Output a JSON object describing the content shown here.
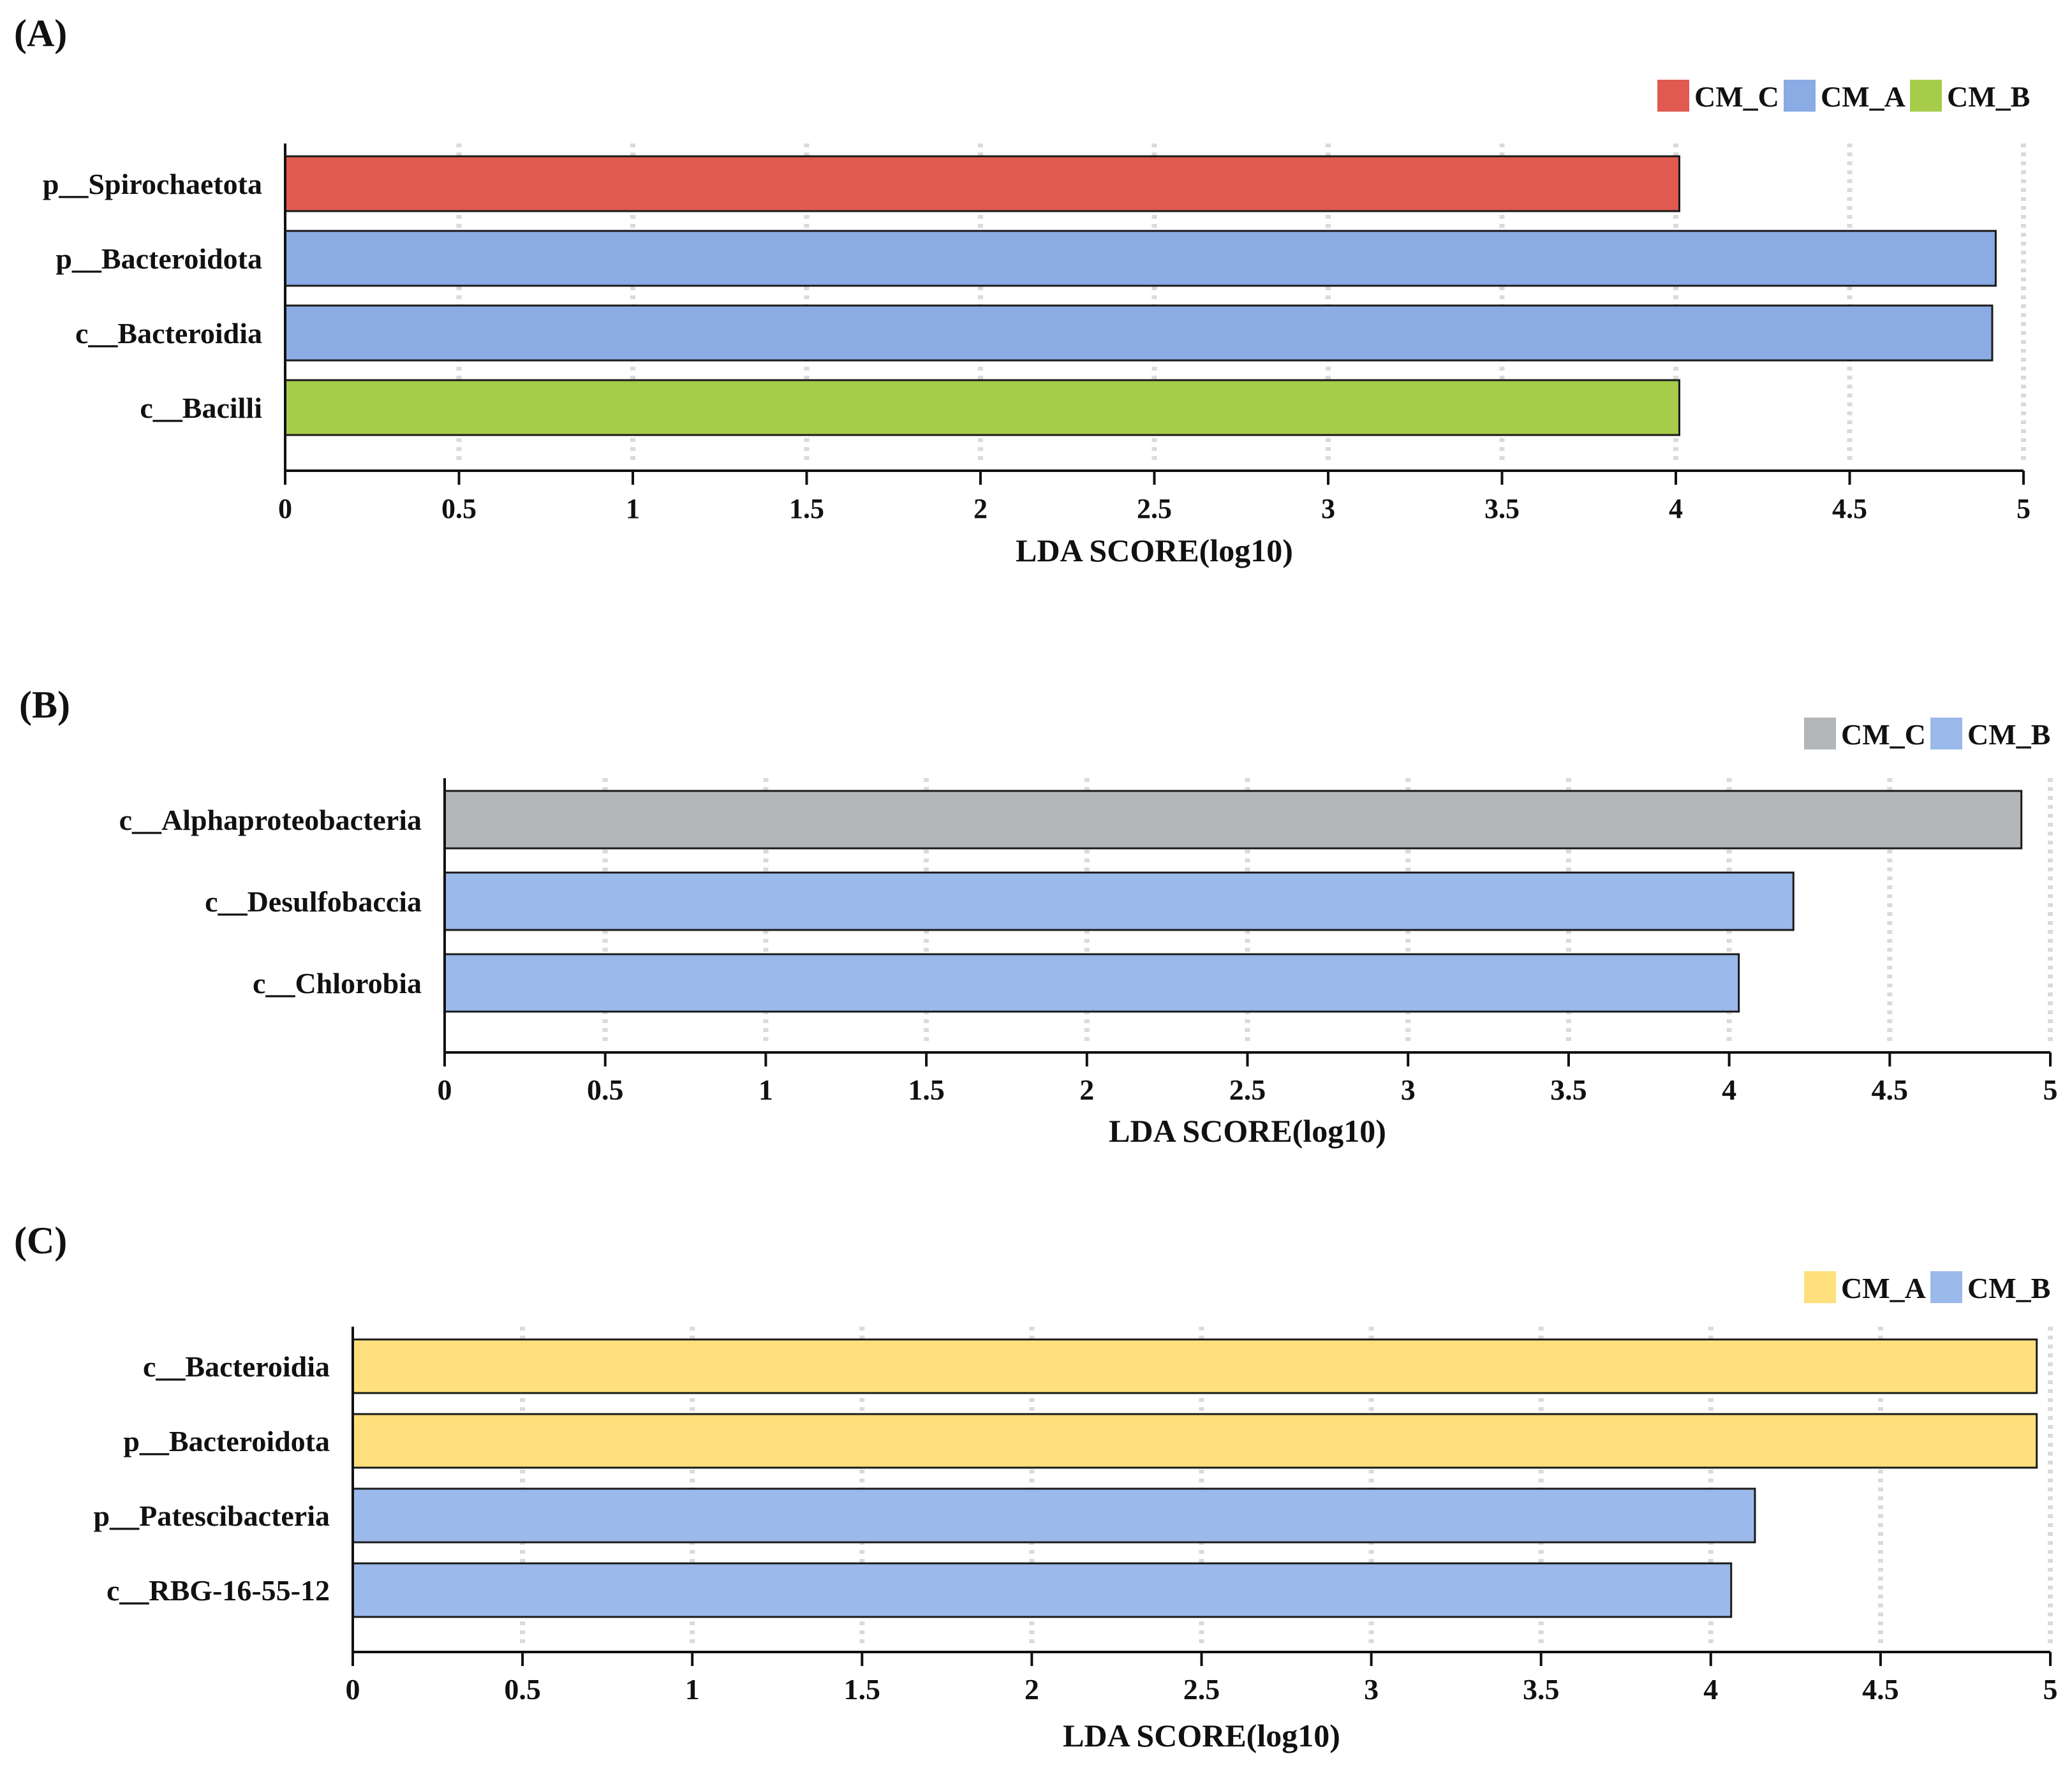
{
  "colors": {
    "red": "#E05A50",
    "blue": "#8AABE3",
    "blue_light": "#9BB9EA",
    "green": "#A6CC4A",
    "gray": "#B2B6B8",
    "yellow": "#FFE07C"
  },
  "chart_data": [
    {
      "panel_label": "(A)",
      "type": "bar",
      "orientation": "horizontal",
      "xlabel": "LDA SCORE(log10)",
      "xlim": [
        0,
        5
      ],
      "xticks": [
        "0",
        "0.5",
        "1",
        "1.5",
        "2",
        "2.5",
        "3",
        "3.5",
        "4",
        "4.5",
        "5"
      ],
      "legend": [
        {
          "label": "CM_C",
          "color": "#E05A50"
        },
        {
          "label": "CM_A",
          "color": "#8AABE3"
        },
        {
          "label": "CM_B",
          "color": "#A6CC4A"
        }
      ],
      "bars": [
        {
          "label": "p__Spirochaetota",
          "value": 4.01,
          "group": "CM_C",
          "color": "#E05A50"
        },
        {
          "label": "p__Bacteroidota",
          "value": 4.92,
          "group": "CM_A",
          "color": "#8AABE3"
        },
        {
          "label": "c__Bacteroidia",
          "value": 4.91,
          "group": "CM_A",
          "color": "#8AABE3"
        },
        {
          "label": "c__Bacilli",
          "value": 4.01,
          "group": "CM_B",
          "color": "#A6CC4A"
        }
      ]
    },
    {
      "panel_label": "(B)",
      "type": "bar",
      "orientation": "horizontal",
      "xlabel": "LDA SCORE(log10)",
      "xlim": [
        0,
        5
      ],
      "xticks": [
        "0",
        "0.5",
        "1",
        "1.5",
        "2",
        "2.5",
        "3",
        "3.5",
        "4",
        "4.5",
        "5"
      ],
      "legend": [
        {
          "label": "CM_C",
          "color": "#B2B6B8"
        },
        {
          "label": "CM_B",
          "color": "#9BB9EA"
        }
      ],
      "bars": [
        {
          "label": "c__Alphaproteobacteria",
          "value": 4.91,
          "group": "CM_C",
          "color": "#B2B6B8"
        },
        {
          "label": "c__Desulfobaccia",
          "value": 4.2,
          "group": "CM_B",
          "color": "#9BB9EA"
        },
        {
          "label": "c__Chlorobia",
          "value": 4.03,
          "group": "CM_B",
          "color": "#9BB9EA"
        }
      ]
    },
    {
      "panel_label": "(C)",
      "type": "bar",
      "orientation": "horizontal",
      "xlabel": "LDA SCORE(log10)",
      "xlim": [
        0,
        5
      ],
      "xticks": [
        "0",
        "0.5",
        "1",
        "1.5",
        "2",
        "2.5",
        "3",
        "3.5",
        "4",
        "4.5",
        "5"
      ],
      "legend": [
        {
          "label": "CM_A",
          "color": "#FFE07C"
        },
        {
          "label": "CM_B",
          "color": "#9BB9EA"
        }
      ],
      "bars": [
        {
          "label": "c__Bacteroidia",
          "value": 4.96,
          "group": "CM_A",
          "color": "#FFE07C"
        },
        {
          "label": "p__Bacteroidota",
          "value": 4.96,
          "group": "CM_A",
          "color": "#FFE07C"
        },
        {
          "label": "p__Patescibacteria",
          "value": 4.13,
          "group": "CM_B",
          "color": "#9BB9EA"
        },
        {
          "label": "c__RBG-16-55-12",
          "value": 4.06,
          "group": "CM_B",
          "color": "#9BB9EA"
        }
      ]
    }
  ]
}
